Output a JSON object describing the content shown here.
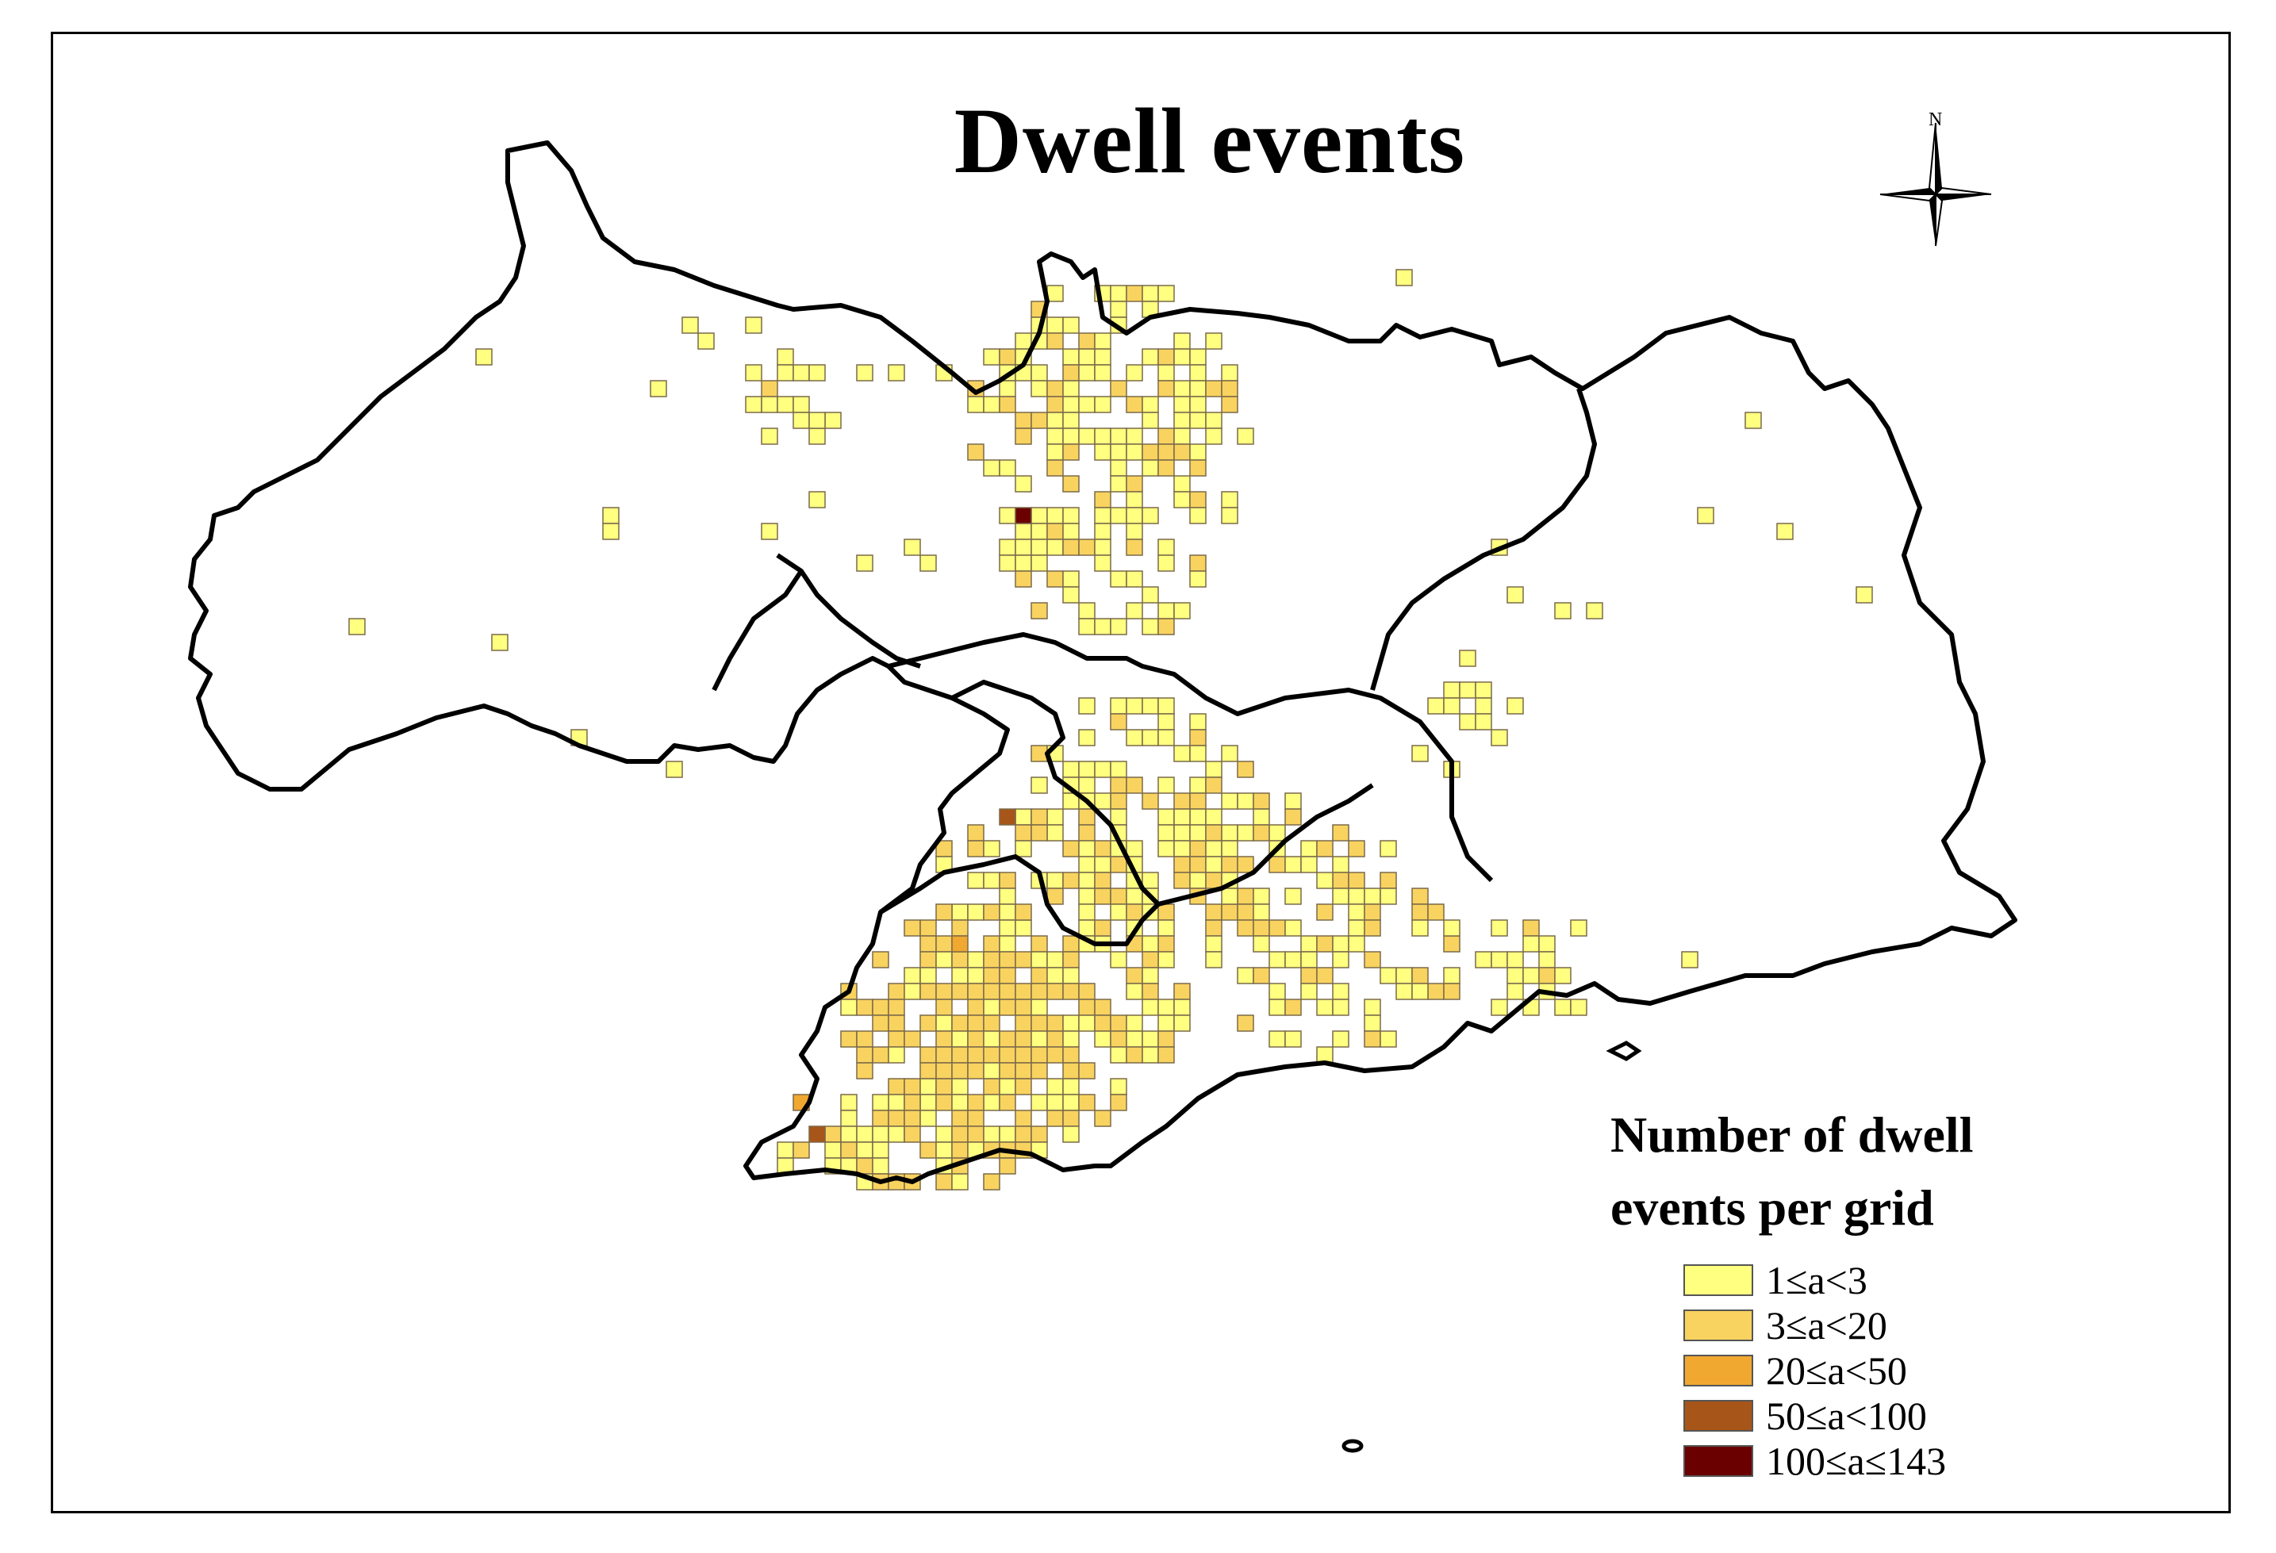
{
  "map": {
    "title": "Dwell events",
    "north_label": "N",
    "boundary_color": "#000000",
    "grid_outline_color": "#7a6a4a"
  },
  "legend": {
    "title_line1": "Number of dwell",
    "title_line2": "events per grid",
    "items": [
      {
        "label": "1≤a<3",
        "color": "#FFFF80"
      },
      {
        "label": "3≤a<20",
        "color": "#F9D35F"
      },
      {
        "label": "20≤a<50",
        "color": "#F0A830"
      },
      {
        "label": "50≤a<100",
        "color": "#A8551A"
      },
      {
        "label": "100≤a≤143",
        "color": "#6B0000"
      }
    ]
  }
}
